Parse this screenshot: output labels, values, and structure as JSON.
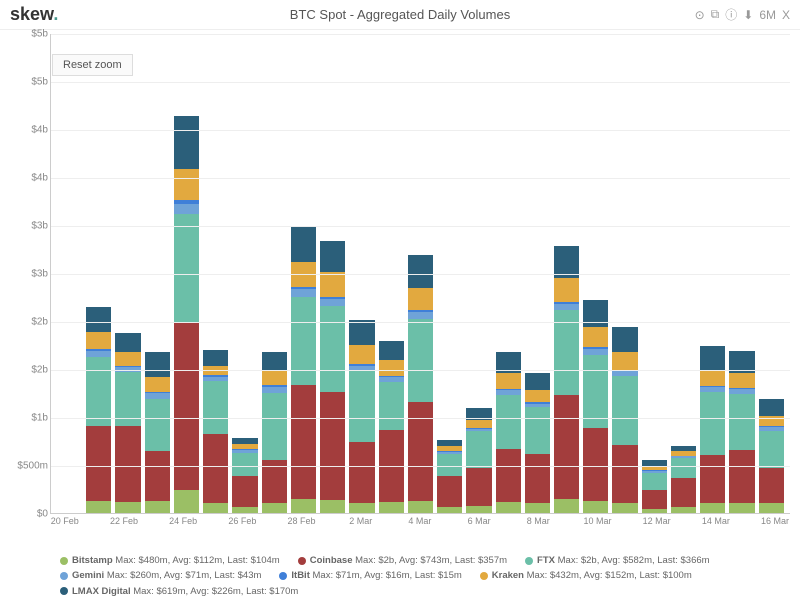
{
  "logo": {
    "text": "skew",
    "suffix": "."
  },
  "title": "BTC Spot - Aggregated Daily Volumes",
  "toolbar": {
    "items": [
      "⊙",
      "⧉",
      "ⓘ",
      "⬇",
      "6M",
      "X"
    ]
  },
  "reset_label": "Reset zoom",
  "chart": {
    "type": "stacked-bar",
    "background_color": "#ffffff",
    "grid_color": "#eeeeee",
    "ylim": [
      0,
      5000
    ],
    "y_ticks": [
      {
        "v": 0,
        "label": "$0"
      },
      {
        "v": 500,
        "label": "$500m"
      },
      {
        "v": 1000,
        "label": "$1b"
      },
      {
        "v": 1500,
        "label": "$2b"
      },
      {
        "v": 2000,
        "label": "$2b"
      },
      {
        "v": 2500,
        "label": "$3b"
      },
      {
        "v": 3000,
        "label": "$3b"
      },
      {
        "v": 3500,
        "label": "$4b"
      },
      {
        "v": 4000,
        "label": "$4b"
      },
      {
        "v": 4500,
        "label": "$5b"
      },
      {
        "v": 5000,
        "label": "$5b"
      }
    ],
    "x_labels": [
      "20 Feb",
      "",
      "22 Feb",
      "",
      "24 Feb",
      "",
      "26 Feb",
      "",
      "28 Feb",
      "",
      "2 Mar",
      "",
      "4 Mar",
      "",
      "6 Mar",
      "",
      "8 Mar",
      "",
      "10 Mar",
      "",
      "12 Mar",
      "",
      "14 Mar",
      "",
      "16 Mar"
    ],
    "series_order": [
      "bitstamp",
      "coinbase",
      "ftx",
      "gemini",
      "itbit",
      "kraken",
      "lmax"
    ],
    "series_colors": {
      "bitstamp": "#9bbf65",
      "coinbase": "#a33d3d",
      "ftx": "#6bbfa8",
      "gemini": "#6fa3d8",
      "itbit": "#3f7fd8",
      "kraken": "#e2a93f",
      "lmax": "#2b5f7a"
    },
    "data": [
      {
        "bitstamp": 0,
        "coinbase": 0,
        "ftx": 0,
        "gemini": 0,
        "itbit": 0,
        "kraken": 0,
        "lmax": 0
      },
      {
        "bitstamp": 130,
        "coinbase": 780,
        "ftx": 720,
        "gemini": 60,
        "itbit": 20,
        "kraken": 180,
        "lmax": 260
      },
      {
        "bitstamp": 110,
        "coinbase": 800,
        "ftx": 560,
        "gemini": 50,
        "itbit": 15,
        "kraken": 140,
        "lmax": 200
      },
      {
        "bitstamp": 120,
        "coinbase": 530,
        "ftx": 540,
        "gemini": 60,
        "itbit": 15,
        "kraken": 150,
        "lmax": 260
      },
      {
        "bitstamp": 240,
        "coinbase": 1740,
        "ftx": 1140,
        "gemini": 100,
        "itbit": 40,
        "kraken": 320,
        "lmax": 560
      },
      {
        "bitstamp": 100,
        "coinbase": 720,
        "ftx": 560,
        "gemini": 40,
        "itbit": 15,
        "kraken": 100,
        "lmax": 160
      },
      {
        "bitstamp": 60,
        "coinbase": 330,
        "ftx": 240,
        "gemini": 25,
        "itbit": 10,
        "kraken": 50,
        "lmax": 70
      },
      {
        "bitstamp": 100,
        "coinbase": 450,
        "ftx": 700,
        "gemini": 60,
        "itbit": 20,
        "kraken": 150,
        "lmax": 200
      },
      {
        "bitstamp": 150,
        "coinbase": 1180,
        "ftx": 920,
        "gemini": 80,
        "itbit": 25,
        "kraken": 260,
        "lmax": 380
      },
      {
        "bitstamp": 140,
        "coinbase": 1120,
        "ftx": 900,
        "gemini": 70,
        "itbit": 20,
        "kraken": 260,
        "lmax": 320
      },
      {
        "bitstamp": 100,
        "coinbase": 640,
        "ftx": 740,
        "gemini": 55,
        "itbit": 15,
        "kraken": 200,
        "lmax": 260
      },
      {
        "bitstamp": 110,
        "coinbase": 760,
        "ftx": 500,
        "gemini": 45,
        "itbit": 15,
        "kraken": 160,
        "lmax": 200
      },
      {
        "bitstamp": 130,
        "coinbase": 1030,
        "ftx": 860,
        "gemini": 70,
        "itbit": 20,
        "kraken": 230,
        "lmax": 350
      },
      {
        "bitstamp": 60,
        "coinbase": 330,
        "ftx": 230,
        "gemini": 20,
        "itbit": 8,
        "kraken": 50,
        "lmax": 60
      },
      {
        "bitstamp": 70,
        "coinbase": 400,
        "ftx": 380,
        "gemini": 30,
        "itbit": 10,
        "kraken": 80,
        "lmax": 120
      },
      {
        "bitstamp": 110,
        "coinbase": 560,
        "ftx": 560,
        "gemini": 50,
        "itbit": 15,
        "kraken": 160,
        "lmax": 220
      },
      {
        "bitstamp": 100,
        "coinbase": 520,
        "ftx": 480,
        "gemini": 40,
        "itbit": 15,
        "kraken": 130,
        "lmax": 170
      },
      {
        "bitstamp": 150,
        "coinbase": 1080,
        "ftx": 880,
        "gemini": 70,
        "itbit": 20,
        "kraken": 250,
        "lmax": 330
      },
      {
        "bitstamp": 120,
        "coinbase": 770,
        "ftx": 760,
        "gemini": 60,
        "itbit": 15,
        "kraken": 210,
        "lmax": 280
      },
      {
        "bitstamp": 100,
        "coinbase": 610,
        "ftx": 720,
        "gemini": 50,
        "itbit": 15,
        "kraken": 180,
        "lmax": 260
      },
      {
        "bitstamp": 40,
        "coinbase": 200,
        "ftx": 180,
        "gemini": 20,
        "itbit": 8,
        "kraken": 40,
        "lmax": 60
      },
      {
        "bitstamp": 60,
        "coinbase": 310,
        "ftx": 200,
        "gemini": 20,
        "itbit": 8,
        "kraken": 50,
        "lmax": 50
      },
      {
        "bitstamp": 100,
        "coinbase": 500,
        "ftx": 660,
        "gemini": 50,
        "itbit": 15,
        "kraken": 160,
        "lmax": 250
      },
      {
        "bitstamp": 100,
        "coinbase": 560,
        "ftx": 580,
        "gemini": 50,
        "itbit": 15,
        "kraken": 150,
        "lmax": 230
      },
      {
        "bitstamp": 100,
        "coinbase": 370,
        "ftx": 380,
        "gemini": 45,
        "itbit": 15,
        "kraken": 100,
        "lmax": 180
      }
    ]
  },
  "legend": [
    {
      "key": "bitstamp",
      "name": "Bitstamp",
      "stats": "Max: $480m, Avg: $112m, Last: $104m"
    },
    {
      "key": "coinbase",
      "name": "Coinbase",
      "stats": "Max: $2b, Avg: $743m, Last: $357m"
    },
    {
      "key": "ftx",
      "name": "FTX",
      "stats": "Max: $2b, Avg: $582m, Last: $366m"
    },
    {
      "key": "gemini",
      "name": "Gemini",
      "stats": "Max: $260m, Avg: $71m, Last: $43m"
    },
    {
      "key": "itbit",
      "name": "ItBit",
      "stats": "Max: $71m, Avg: $16m, Last: $15m"
    },
    {
      "key": "kraken",
      "name": "Kraken",
      "stats": "Max: $432m, Avg: $152m, Last: $100m"
    },
    {
      "key": "lmax",
      "name": "LMAX Digital",
      "stats": "Max: $619m, Avg: $226m, Last: $170m"
    }
  ]
}
